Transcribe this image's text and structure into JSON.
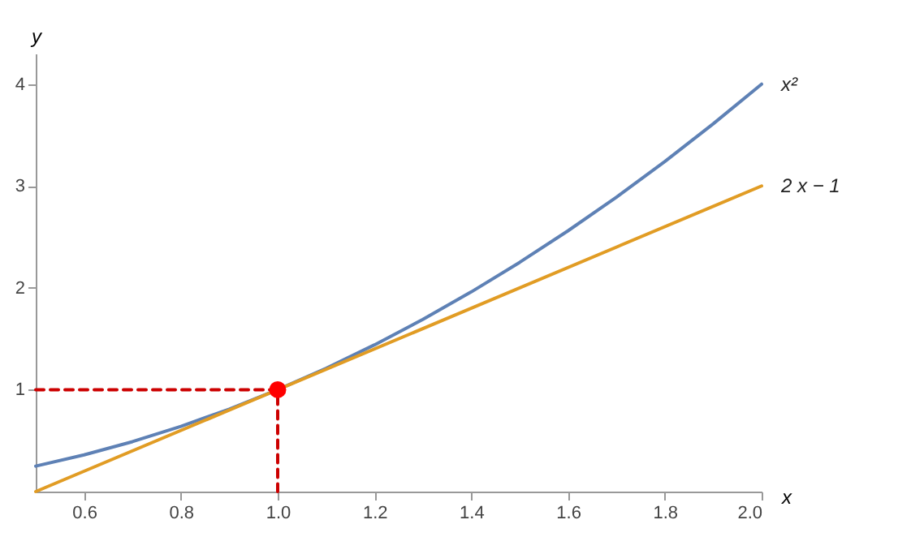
{
  "chart_data": {
    "type": "line",
    "xlabel": "x",
    "ylabel": "y",
    "xlim": [
      0.5,
      2.0
    ],
    "ylim": [
      0,
      4.3
    ],
    "xticks": [
      0.6,
      0.8,
      {
        "value": 1,
        "label": "1.0"
      },
      1.2,
      1.4,
      1.6,
      1.8,
      {
        "value": 2,
        "label": "2.0"
      }
    ],
    "yticks": [
      1,
      2,
      3,
      4
    ],
    "series": [
      {
        "name": "x²",
        "color": "#5e81b5",
        "x": [
          0.5,
          0.6,
          0.7,
          0.8,
          0.9,
          1.0,
          1.1,
          1.2,
          1.3,
          1.4,
          1.5,
          1.6,
          1.7,
          1.8,
          1.9,
          2.0
        ],
        "values": [
          0.25,
          0.36,
          0.49,
          0.64,
          0.81,
          1,
          1.21,
          1.44,
          1.69,
          1.96,
          2.25,
          2.56,
          2.89,
          3.24,
          3.61,
          4
        ]
      },
      {
        "name": "2 x − 1",
        "color": "#e19c24",
        "x": [
          0.5,
          2.0
        ],
        "values": [
          0,
          3
        ]
      },
      {
        "type": "line",
        "color": "#cc0000",
        "line_style": "dashed",
        "x": [
          0.5,
          1.0,
          1.0
        ],
        "values": [
          1,
          1,
          0
        ]
      },
      {
        "type": "scatter",
        "color": "#ff0000",
        "marker": "circle",
        "x": [
          1.0
        ],
        "values": [
          1
        ]
      }
    ]
  }
}
